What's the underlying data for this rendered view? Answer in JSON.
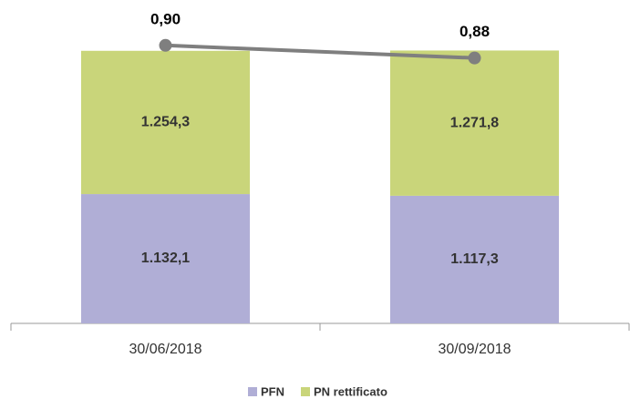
{
  "chart_data": {
    "type": "bar",
    "stacked": true,
    "categories": [
      "30/06/2018",
      "30/09/2018"
    ],
    "series": [
      {
        "name": "PFN",
        "color": "#b0aed6",
        "values": [
          1132.1,
          1117.3
        ],
        "value_labels": [
          "1.132,1",
          "1.117,3"
        ]
      },
      {
        "name": "PN rettificato",
        "color": "#c9d57a",
        "values": [
          1254.3,
          1271.8
        ],
        "value_labels": [
          "1.254,3",
          "1.271,8"
        ]
      },
      {
        "type": "line",
        "axis": "y2",
        "color": "#7f7f7f",
        "values": [
          0.9,
          0.88
        ],
        "value_labels": [
          "0,90",
          "0,88"
        ]
      }
    ],
    "ylim": [
      0,
      2600
    ],
    "y2lim": [
      0.46,
      0.93
    ],
    "legend": "bottom"
  }
}
